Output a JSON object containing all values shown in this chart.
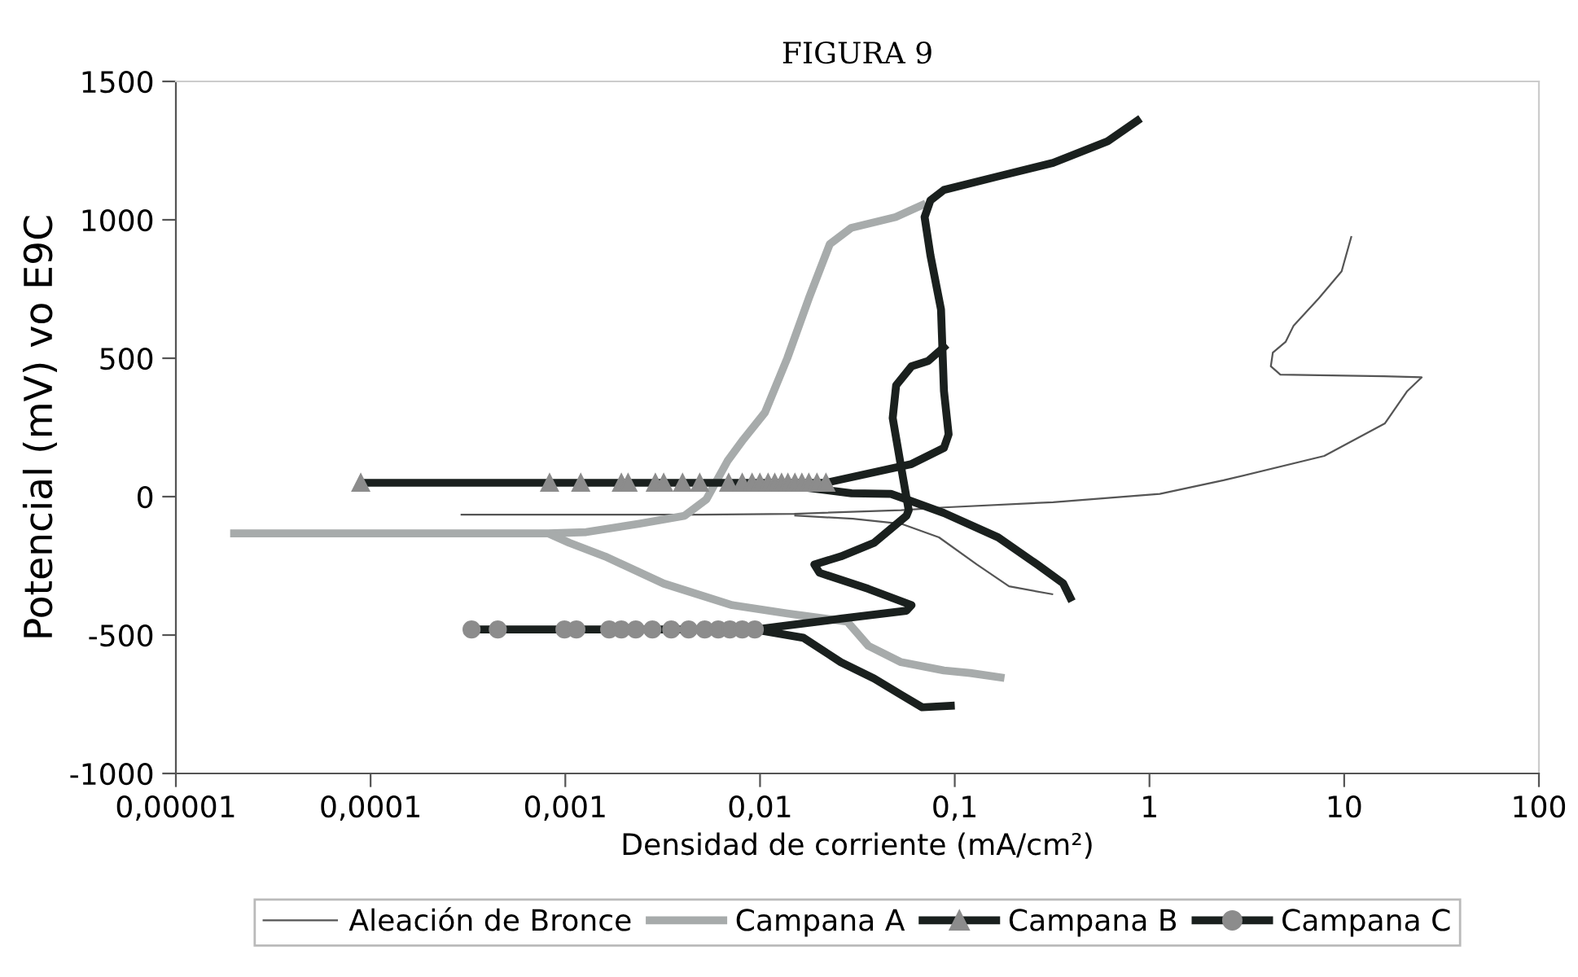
{
  "chart_data": {
    "type": "line",
    "title": "FIGURA 9",
    "xlabel": "Densidad de corriente (mA/cm²)",
    "ylabel": "Potencial (mV) vo E9C",
    "log": "x",
    "xlim": [
      1e-05,
      100
    ],
    "xticks": [
      {
        "value": 1e-05,
        "label": "0,00001"
      },
      {
        "value": 0.0001,
        "label": "0,0001"
      },
      {
        "value": 0.001,
        "label": "0,001"
      },
      {
        "value": 0.01,
        "label": "0,01"
      },
      {
        "value": 0.1,
        "label": "0,1"
      },
      1,
      10,
      100
    ],
    "ylim": [
      -1000,
      1500
    ],
    "yticks": [
      -1000,
      -500,
      0,
      500,
      1000,
      1500
    ],
    "grid": false,
    "legend": "bottom",
    "series": [
      {
        "name": "Aleación de Bronce",
        "color": "#555555",
        "x": [
          0.00029,
          0.005,
          0.015,
          0.053,
          0.088,
          0.32,
          1.13,
          2.4,
          7.9,
          16.2,
          21,
          25,
          16,
          4.7,
          4.2,
          4.3,
          5.0,
          5.5,
          7.4,
          9.7,
          10.9
        ],
        "values": [
          -65,
          -65,
          -62,
          -49,
          -39,
          -20,
          10,
          59,
          147,
          265,
          380,
          431,
          435,
          441,
          471,
          520,
          559,
          618,
          716,
          814,
          941
        ]
      },
      {
        "color": "#555555",
        "x": [
          0.015,
          0.03,
          0.053,
          0.083,
          0.13,
          0.19,
          0.32
        ],
        "values": [
          -68,
          -80,
          -98,
          -147,
          -245,
          -324,
          -353
        ]
      },
      {
        "name": "Campana A",
        "color": "#a7abab",
        "x": [
          1.9e-05,
          0.00082,
          0.00128,
          0.0024,
          0.0041,
          0.0053,
          0.0068,
          0.0082,
          0.0106,
          0.0138,
          0.0178,
          0.0228,
          0.0294,
          0.0497,
          0.071
        ],
        "values": [
          -133,
          -133,
          -128,
          -98,
          -69,
          -10,
          128,
          206,
          304,
          500,
          716,
          912,
          971,
          1010,
          1059
        ]
      },
      {
        "color": "#a7abab",
        "x": [
          0.00082,
          0.00105,
          0.0016,
          0.0032,
          0.0072,
          0.0138,
          0.028,
          0.036,
          0.053,
          0.088,
          0.12,
          0.18
        ],
        "values": [
          -133,
          -167,
          -216,
          -314,
          -392,
          -422,
          -451,
          -539,
          -598,
          -628,
          -637,
          -655
        ]
      },
      {
        "name": "Campana B",
        "color": "#1a201e",
        "marker": "triangle",
        "x": [
          8.9e-05,
          0.00083,
          0.0012,
          0.00194,
          0.0021,
          0.0029,
          0.0032,
          0.004,
          0.0049,
          0.0069,
          0.0081,
          0.0091,
          0.00998,
          0.011,
          0.0119,
          0.0129,
          0.0139,
          0.0151,
          0.0164,
          0.0178,
          0.0196,
          0.0218
        ],
        "values": [
          50,
          50,
          50,
          50,
          50,
          50,
          50,
          50,
          50,
          50,
          50,
          50,
          50,
          50,
          50,
          50,
          50,
          50,
          50,
          50,
          50,
          50
        ]
      },
      {
        "color": "#1a201e",
        "x": [
          0.0218,
          0.06,
          0.088,
          0.093,
          0.088,
          0.085,
          0.075,
          0.07,
          0.075,
          0.088,
          0.167,
          0.32,
          0.61,
          0.9
        ],
        "values": [
          50,
          118,
          176,
          225,
          382,
          676,
          872,
          1010,
          1070,
          1108,
          1157,
          1206,
          1284,
          1366
        ]
      },
      {
        "color": "#1a201e",
        "x": [
          0.0139,
          0.0295,
          0.047,
          0.0565,
          0.088,
          0.167,
          0.265,
          0.36,
          0.4
        ],
        "values": [
          41,
          12,
          10,
          -10,
          -59,
          -147,
          -245,
          -313,
          -378
        ]
      },
      {
        "name": "Campana C",
        "color": "#1a201e",
        "marker": "circle",
        "x": [
          0.00033,
          0.00045,
          0.00099,
          0.00114,
          0.00168,
          0.00194,
          0.0023,
          0.0028,
          0.0035,
          0.0043,
          0.0052,
          0.0061,
          0.007,
          0.0081,
          0.0094
        ],
        "values": [
          -480,
          -480,
          -480,
          -480,
          -480,
          -480,
          -480,
          -480,
          -480,
          -480,
          -480,
          -480,
          -480,
          -480,
          -480
        ]
      },
      {
        "color": "#1a201e",
        "x": [
          0.0094,
          0.026,
          0.0565,
          0.06,
          0.0359,
          0.0202,
          0.019,
          0.026,
          0.0385,
          0.0565,
          0.058,
          0.053,
          0.048,
          0.05,
          0.06,
          0.073,
          0.091
        ],
        "values": [
          -480,
          -441,
          -412,
          -392,
          -333,
          -275,
          -245,
          -216,
          -167,
          -69,
          -49,
          108,
          284,
          402,
          471,
          490,
          549
        ]
      },
      {
        "color": "#1a201e",
        "x": [
          0.0094,
          0.0167,
          0.026,
          0.0385,
          0.053,
          0.068,
          0.1
        ],
        "values": [
          -480,
          -510,
          -598,
          -657,
          -716,
          -761,
          -755
        ]
      }
    ]
  }
}
